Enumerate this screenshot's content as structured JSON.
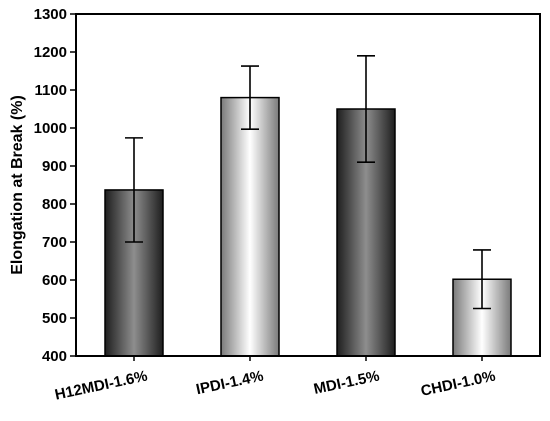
{
  "chart_data": {
    "type": "bar",
    "title": "",
    "xlabel": "",
    "ylabel": "Elongation at Break (%)",
    "ylim": [
      400,
      1300
    ],
    "yticks": [
      400,
      500,
      600,
      700,
      800,
      900,
      1000,
      1100,
      1200,
      1300
    ],
    "categories": [
      "H12MDI-1.6%",
      "IPDI-1.4%",
      "MDI-1.5%",
      "CHDI-1.0%"
    ],
    "values": [
      837,
      1080,
      1050,
      602
    ],
    "errors": [
      137,
      83,
      140,
      77
    ],
    "bar_styles": [
      "dark-gradient",
      "light-gradient",
      "dark-gradient",
      "light-gradient"
    ],
    "grid": false,
    "legend": "none"
  }
}
